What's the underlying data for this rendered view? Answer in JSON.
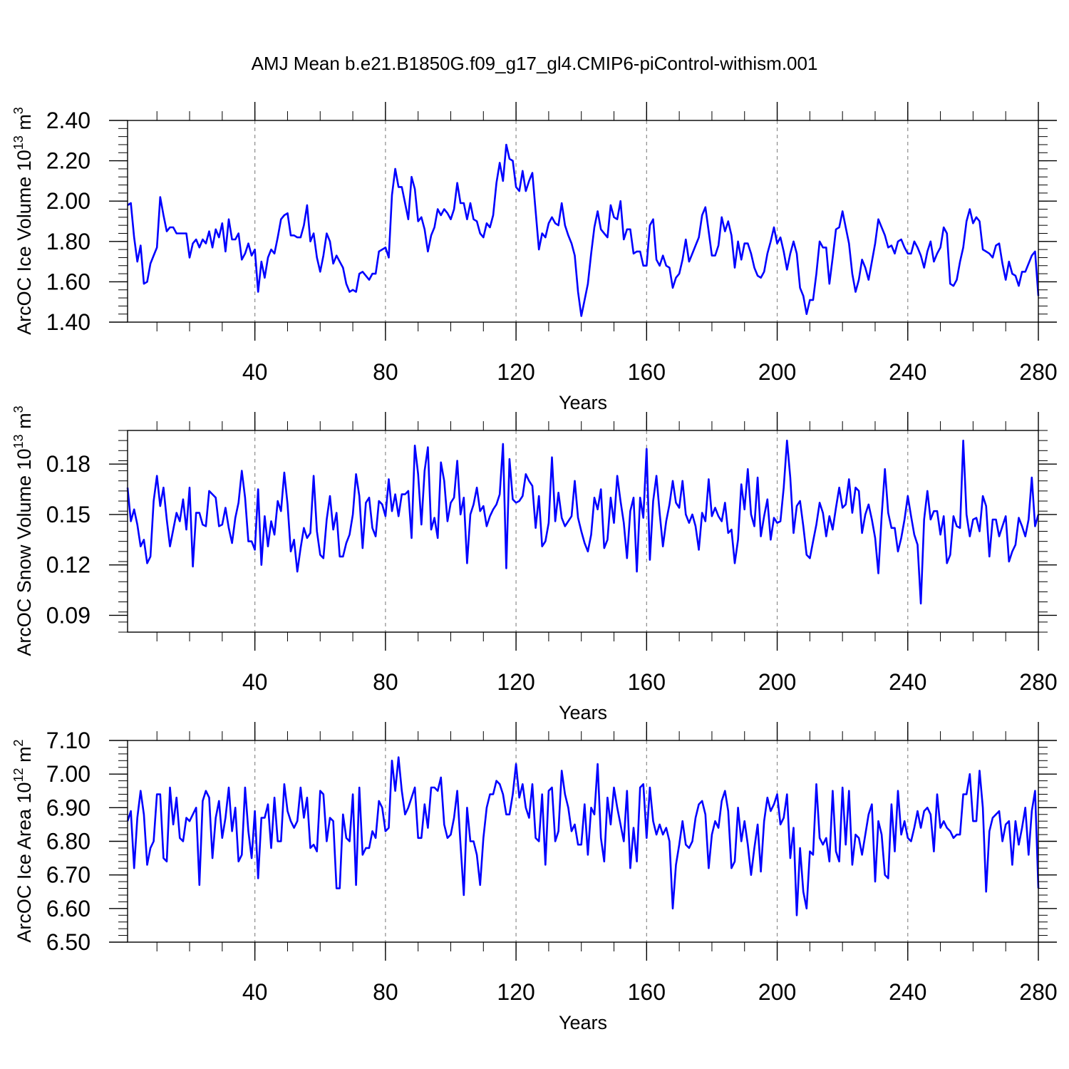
{
  "title": "AMJ Mean b.e21.B1850G.f09_g17_gl4.CMIP6-piControl-withism.001",
  "colors": {
    "line": "#0000ff",
    "axis": "#000000",
    "grid": "#8c8c8c"
  },
  "chart_data": [
    {
      "type": "line",
      "id": "ice-volume",
      "xlabel": "Years",
      "ylabel": {
        "main": "ArcOC Ice Volume 10",
        "exp": "13",
        "unit": " m",
        "unit_exp": "3"
      },
      "xlim": [
        1,
        280
      ],
      "ylim": [
        1.4,
        2.4
      ],
      "xticks": [
        40,
        80,
        120,
        160,
        200,
        240,
        280
      ],
      "xtick_labels": [
        "40",
        "80",
        "120",
        "160",
        "200",
        "240",
        "280"
      ],
      "yticks": [
        1.4,
        1.6,
        1.8,
        2.0,
        2.2,
        2.4
      ],
      "ytick_labels": [
        "1.40",
        "1.60",
        "1.80",
        "2.00",
        "2.20",
        "2.40"
      ],
      "grid": "vertical dashed at x ticks",
      "series": [
        {
          "values": [
            1.98,
            1.99,
            1.82,
            1.7,
            1.78,
            1.59,
            1.6,
            1.69,
            1.73,
            1.77,
            2.02,
            1.93,
            1.85,
            1.87,
            1.87,
            1.84,
            1.84,
            1.84,
            1.84,
            1.72,
            1.79,
            1.81,
            1.77,
            1.81,
            1.79,
            1.85,
            1.77,
            1.86,
            1.82,
            1.89,
            1.75,
            1.91,
            1.81,
            1.81,
            1.84,
            1.71,
            1.74,
            1.79,
            1.73,
            1.76,
            1.55,
            1.7,
            1.62,
            1.72,
            1.76,
            1.74,
            1.82,
            1.91,
            1.93,
            1.94,
            1.83,
            1.83,
            1.82,
            1.82,
            1.88,
            1.98,
            1.8,
            1.84,
            1.72,
            1.65,
            1.73,
            1.84,
            1.8,
            1.69,
            1.73,
            1.7,
            1.67,
            1.59,
            1.55,
            1.56,
            1.55,
            1.64,
            1.65,
            1.63,
            1.61,
            1.64,
            1.64,
            1.75,
            1.76,
            1.77,
            1.72,
            2.03,
            2.16,
            2.07,
            2.07,
            1.99,
            1.91,
            2.12,
            2.06,
            1.9,
            1.92,
            1.86,
            1.75,
            1.83,
            1.87,
            1.96,
            1.93,
            1.96,
            1.94,
            1.91,
            1.96,
            2.09,
            1.99,
            1.99,
            1.91,
            1.99,
            1.91,
            1.9,
            1.84,
            1.82,
            1.89,
            1.87,
            1.93,
            2.09,
            2.19,
            2.1,
            2.28,
            2.21,
            2.2,
            2.07,
            2.05,
            2.15,
            2.05,
            2.1,
            2.14,
            1.95,
            1.76,
            1.84,
            1.82,
            1.89,
            1.92,
            1.89,
            1.88,
            1.99,
            1.88,
            1.83,
            1.79,
            1.73,
            1.55,
            1.43,
            1.51,
            1.59,
            1.74,
            1.87,
            1.95,
            1.86,
            1.84,
            1.82,
            1.98,
            1.92,
            1.91,
            2.0,
            1.81,
            1.86,
            1.86,
            1.74,
            1.75,
            1.75,
            1.68,
            1.68,
            1.88,
            1.91,
            1.71,
            1.68,
            1.73,
            1.68,
            1.67,
            1.57,
            1.62,
            1.64,
            1.71,
            1.81,
            1.7,
            1.74,
            1.78,
            1.82,
            1.93,
            1.97,
            1.85,
            1.73,
            1.73,
            1.78,
            1.92,
            1.85,
            1.9,
            1.83,
            1.67,
            1.8,
            1.71,
            1.79,
            1.79,
            1.74,
            1.67,
            1.63,
            1.62,
            1.65,
            1.74,
            1.8,
            1.87,
            1.79,
            1.82,
            1.75,
            1.66,
            1.74,
            1.8,
            1.74,
            1.57,
            1.53,
            1.44,
            1.51,
            1.51,
            1.64,
            1.8,
            1.77,
            1.77,
            1.59,
            1.72,
            1.86,
            1.87,
            1.95,
            1.87,
            1.79,
            1.64,
            1.55,
            1.61,
            1.71,
            1.67,
            1.61,
            1.7,
            1.79,
            1.91,
            1.87,
            1.83,
            1.77,
            1.78,
            1.74,
            1.8,
            1.81,
            1.77,
            1.74,
            1.74,
            1.8,
            1.77,
            1.73,
            1.67,
            1.75,
            1.8,
            1.7,
            1.74,
            1.77,
            1.87,
            1.84,
            1.59,
            1.58,
            1.61,
            1.7,
            1.77,
            1.9,
            1.96,
            1.89,
            1.92,
            1.9,
            1.76,
            1.75,
            1.74,
            1.72,
            1.78,
            1.79,
            1.69,
            1.61,
            1.7,
            1.64,
            1.63,
            1.58,
            1.65,
            1.65,
            1.69,
            1.73,
            1.75,
            1.53
          ]
        }
      ]
    },
    {
      "type": "line",
      "id": "snow-volume",
      "xlabel": "Years",
      "ylabel": {
        "main": "ArcOC Snow Volume 10",
        "exp": "13",
        "unit": " m",
        "unit_exp": "3"
      },
      "xlim": [
        1,
        280
      ],
      "ylim": [
        0.08,
        0.2
      ],
      "xticks": [
        40,
        80,
        120,
        160,
        200,
        240,
        280
      ],
      "xtick_labels": [
        "40",
        "80",
        "120",
        "160",
        "200",
        "240",
        "280"
      ],
      "yticks": [
        0.09,
        0.12,
        0.15,
        0.18
      ],
      "ytick_labels": [
        "0.09",
        "0.12",
        "0.15",
        "0.18"
      ],
      "grid": "vertical dashed at x ticks",
      "series": [
        {
          "values": [
            0.166,
            0.146,
            0.153,
            0.144,
            0.131,
            0.135,
            0.121,
            0.125,
            0.158,
            0.173,
            0.155,
            0.166,
            0.147,
            0.131,
            0.141,
            0.151,
            0.146,
            0.159,
            0.141,
            0.166,
            0.119,
            0.151,
            0.151,
            0.144,
            0.143,
            0.164,
            0.162,
            0.16,
            0.143,
            0.144,
            0.154,
            0.142,
            0.133,
            0.148,
            0.157,
            0.176,
            0.16,
            0.134,
            0.134,
            0.129,
            0.165,
            0.12,
            0.149,
            0.131,
            0.146,
            0.138,
            0.158,
            0.152,
            0.175,
            0.156,
            0.128,
            0.135,
            0.116,
            0.13,
            0.142,
            0.136,
            0.139,
            0.173,
            0.14,
            0.126,
            0.124,
            0.147,
            0.161,
            0.141,
            0.151,
            0.125,
            0.125,
            0.133,
            0.138,
            0.15,
            0.174,
            0.161,
            0.13,
            0.157,
            0.16,
            0.142,
            0.137,
            0.158,
            0.156,
            0.149,
            0.171,
            0.152,
            0.162,
            0.149,
            0.162,
            0.162,
            0.164,
            0.136,
            0.191,
            0.174,
            0.144,
            0.176,
            0.19,
            0.141,
            0.148,
            0.136,
            0.181,
            0.17,
            0.146,
            0.157,
            0.16,
            0.182,
            0.15,
            0.16,
            0.121,
            0.15,
            0.156,
            0.166,
            0.152,
            0.155,
            0.143,
            0.149,
            0.153,
            0.156,
            0.162,
            0.192,
            0.118,
            0.183,
            0.159,
            0.157,
            0.158,
            0.161,
            0.174,
            0.17,
            0.167,
            0.142,
            0.161,
            0.131,
            0.134,
            0.145,
            0.184,
            0.146,
            0.163,
            0.148,
            0.143,
            0.146,
            0.149,
            0.17,
            0.148,
            0.14,
            0.133,
            0.128,
            0.138,
            0.16,
            0.153,
            0.165,
            0.13,
            0.135,
            0.16,
            0.145,
            0.173,
            0.158,
            0.145,
            0.124,
            0.152,
            0.16,
            0.116,
            0.16,
            0.148,
            0.189,
            0.123,
            0.158,
            0.173,
            0.151,
            0.131,
            0.146,
            0.156,
            0.17,
            0.157,
            0.154,
            0.17,
            0.15,
            0.145,
            0.15,
            0.143,
            0.129,
            0.151,
            0.146,
            0.171,
            0.149,
            0.154,
            0.149,
            0.146,
            0.157,
            0.139,
            0.141,
            0.121,
            0.135,
            0.168,
            0.153,
            0.177,
            0.15,
            0.143,
            0.172,
            0.137,
            0.149,
            0.159,
            0.135,
            0.148,
            0.145,
            0.146,
            0.166,
            0.194,
            0.172,
            0.139,
            0.155,
            0.158,
            0.143,
            0.126,
            0.124,
            0.134,
            0.144,
            0.157,
            0.151,
            0.137,
            0.149,
            0.141,
            0.154,
            0.166,
            0.154,
            0.156,
            0.171,
            0.151,
            0.166,
            0.164,
            0.139,
            0.15,
            0.156,
            0.147,
            0.136,
            0.115,
            0.149,
            0.177,
            0.151,
            0.142,
            0.142,
            0.128,
            0.136,
            0.147,
            0.161,
            0.149,
            0.138,
            0.132,
            0.097,
            0.147,
            0.164,
            0.147,
            0.152,
            0.152,
            0.138,
            0.149,
            0.121,
            0.126,
            0.149,
            0.143,
            0.142,
            0.194,
            0.15,
            0.137,
            0.147,
            0.148,
            0.14,
            0.161,
            0.155,
            0.125,
            0.147,
            0.147,
            0.137,
            0.143,
            0.149,
            0.122,
            0.128,
            0.132,
            0.148,
            0.143,
            0.137,
            0.147,
            0.172,
            0.143,
            0.15
          ]
        }
      ]
    },
    {
      "type": "line",
      "id": "ice-area",
      "xlabel": "Years",
      "ylabel": {
        "main": "ArcOC Ice Area 10",
        "exp": "12",
        "unit": " m",
        "unit_exp": "2"
      },
      "xlim": [
        1,
        280
      ],
      "ylim": [
        6.5,
        7.1
      ],
      "xticks": [
        40,
        80,
        120,
        160,
        200,
        240,
        280
      ],
      "xtick_labels": [
        "40",
        "80",
        "120",
        "160",
        "200",
        "240",
        "280"
      ],
      "yticks": [
        6.5,
        6.6,
        6.7,
        6.8,
        6.9,
        7.0,
        7.1
      ],
      "ytick_labels": [
        "6.50",
        "6.60",
        "6.70",
        "6.80",
        "6.90",
        "7.00",
        "7.10"
      ],
      "grid": "vertical dashed at x ticks",
      "series": [
        {
          "values": [
            6.86,
            6.89,
            6.72,
            6.87,
            6.95,
            6.88,
            6.73,
            6.78,
            6.8,
            6.94,
            6.94,
            6.75,
            6.74,
            6.96,
            6.85,
            6.93,
            6.81,
            6.8,
            6.87,
            6.86,
            6.88,
            6.9,
            6.67,
            6.92,
            6.95,
            6.93,
            6.75,
            6.87,
            6.92,
            6.81,
            6.87,
            6.96,
            6.83,
            6.9,
            6.74,
            6.76,
            6.96,
            6.83,
            6.75,
            6.89,
            6.69,
            6.87,
            6.87,
            6.91,
            6.78,
            6.93,
            6.8,
            6.8,
            6.97,
            6.89,
            6.86,
            6.84,
            6.86,
            6.96,
            6.87,
            6.93,
            6.78,
            6.79,
            6.77,
            6.95,
            6.94,
            6.8,
            6.87,
            6.86,
            6.66,
            6.66,
            6.88,
            6.81,
            6.8,
            6.94,
            6.67,
            6.96,
            6.76,
            6.78,
            6.78,
            6.83,
            6.81,
            6.92,
            6.9,
            6.83,
            6.84,
            7.04,
            6.95,
            7.05,
            6.95,
            6.88,
            6.9,
            6.93,
            6.96,
            6.81,
            6.81,
            6.91,
            6.84,
            6.96,
            6.96,
            6.95,
            6.99,
            6.85,
            6.81,
            6.82,
            6.87,
            6.95,
            6.79,
            6.64,
            6.9,
            6.8,
            6.8,
            6.76,
            6.67,
            6.81,
            6.9,
            6.94,
            6.94,
            6.98,
            6.97,
            6.94,
            6.88,
            6.88,
            6.94,
            7.03,
            6.93,
            6.97,
            6.9,
            6.87,
            6.97,
            6.81,
            6.8,
            6.94,
            6.73,
            6.95,
            6.96,
            6.8,
            6.83,
            7.01,
            6.94,
            6.9,
            6.83,
            6.85,
            6.79,
            6.79,
            6.91,
            6.76,
            6.9,
            6.88,
            7.03,
            6.81,
            6.74,
            6.93,
            6.85,
            6.96,
            6.9,
            6.85,
            6.8,
            6.95,
            6.72,
            6.84,
            6.74,
            6.96,
            6.97,
            6.81,
            6.96,
            6.86,
            6.82,
            6.85,
            6.82,
            6.84,
            6.8,
            6.6,
            6.73,
            6.79,
            6.86,
            6.79,
            6.78,
            6.8,
            6.87,
            6.91,
            6.92,
            6.88,
            6.72,
            6.82,
            6.86,
            6.84,
            6.92,
            6.95,
            6.89,
            6.72,
            6.74,
            6.9,
            6.8,
            6.86,
            6.79,
            6.7,
            6.78,
            6.85,
            6.71,
            6.86,
            6.93,
            6.89,
            6.91,
            6.94,
            6.85,
            6.87,
            6.94,
            6.75,
            6.84,
            6.58,
            6.78,
            6.65,
            6.6,
            6.77,
            6.76,
            6.97,
            6.81,
            6.79,
            6.81,
            6.74,
            6.95,
            6.77,
            6.74,
            6.96,
            6.79,
            6.95,
            6.73,
            6.82,
            6.81,
            6.76,
            6.82,
            6.88,
            6.91,
            6.68,
            6.86,
            6.82,
            6.7,
            6.69,
            6.91,
            6.77,
            6.95,
            6.82,
            6.86,
            6.81,
            6.8,
            6.84,
            6.89,
            6.84,
            6.89,
            6.9,
            6.88,
            6.77,
            6.94,
            6.84,
            6.86,
            6.84,
            6.83,
            6.81,
            6.82,
            6.82,
            6.94,
            6.94,
            7.0,
            6.86,
            6.86,
            7.01,
            6.9,
            6.65,
            6.83,
            6.87,
            6.88,
            6.89,
            6.8,
            6.85,
            6.86,
            6.73,
            6.86,
            6.79,
            6.84,
            6.9,
            6.76,
            6.89,
            6.95,
            6.66
          ]
        }
      ]
    }
  ]
}
